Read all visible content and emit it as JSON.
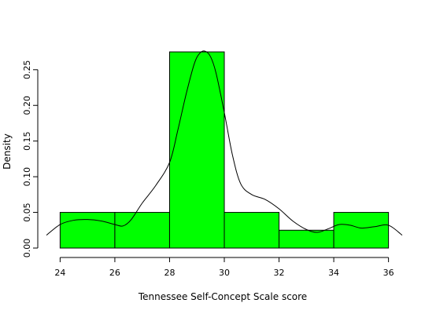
{
  "chart_data": {
    "type": "histogram",
    "title": "",
    "xlabel": "Tennessee Self-Concept Scale score",
    "ylabel": "Density",
    "xlim": [
      23.5,
      36.5
    ],
    "ylim": [
      0,
      0.285
    ],
    "x_ticks": [
      24,
      26,
      28,
      30,
      32,
      34,
      36
    ],
    "y_ticks": [
      0.0,
      0.05,
      0.1,
      0.15,
      0.2,
      0.25
    ],
    "y_tick_labels": [
      "0.00",
      "0.05",
      "0.10",
      "0.15",
      "0.20",
      "0.25"
    ],
    "bar_color": "#00ff00",
    "bins": [
      {
        "start": 24,
        "end": 26,
        "density": 0.05
      },
      {
        "start": 26,
        "end": 28,
        "density": 0.05
      },
      {
        "start": 28,
        "end": 30,
        "density": 0.275
      },
      {
        "start": 30,
        "end": 32,
        "density": 0.05
      },
      {
        "start": 32,
        "end": 34,
        "density": 0.025
      },
      {
        "start": 34,
        "end": 36,
        "density": 0.05
      }
    ],
    "density_curve": {
      "x": [
        23.5,
        24.0,
        24.5,
        25.0,
        25.5,
        26.0,
        26.3,
        26.6,
        27.0,
        27.5,
        28.0,
        28.3,
        28.6,
        28.9,
        29.1,
        29.3,
        29.5,
        29.7,
        30.0,
        30.3,
        30.6,
        31.0,
        31.5,
        32.0,
        32.5,
        33.0,
        33.4,
        33.8,
        34.2,
        34.6,
        35.0,
        35.5,
        36.0,
        36.5
      ],
      "y": [
        0.018,
        0.033,
        0.039,
        0.04,
        0.038,
        0.033,
        0.031,
        0.04,
        0.063,
        0.088,
        0.12,
        0.165,
        0.215,
        0.258,
        0.273,
        0.276,
        0.268,
        0.245,
        0.19,
        0.13,
        0.09,
        0.075,
        0.068,
        0.055,
        0.038,
        0.026,
        0.022,
        0.027,
        0.033,
        0.032,
        0.028,
        0.03,
        0.032,
        0.018
      ]
    }
  }
}
